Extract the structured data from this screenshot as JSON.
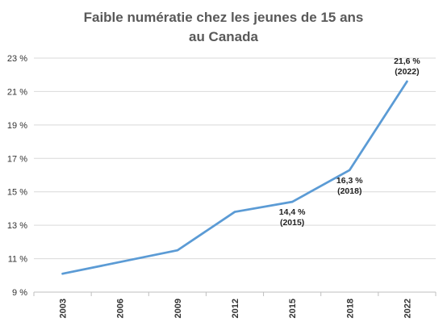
{
  "chart_data": {
    "type": "line",
    "title_lines": [
      "Faible numératie chez les jeunes de 15 ans",
      "au Canada"
    ],
    "xlabel": "",
    "ylabel": "",
    "x": [
      "2003",
      "2006",
      "2009",
      "2012",
      "2015",
      "2018",
      "2022"
    ],
    "series": [
      {
        "values": [
          10.1,
          10.8,
          11.5,
          13.8,
          14.4,
          16.3,
          21.6
        ],
        "color": "#5b9bd5"
      }
    ],
    "ylim": [
      9,
      23
    ],
    "y_ticks": [
      9,
      11,
      13,
      15,
      17,
      19,
      21,
      23
    ],
    "y_tick_labels": [
      "9 %",
      "11 %",
      "13 %",
      "15 %",
      "17 %",
      "19 %",
      "21 %",
      "23 %"
    ],
    "grid": true,
    "legend": "none",
    "annotations": [
      {
        "index": 4,
        "line1": "14,4 %",
        "line2": "(2015)"
      },
      {
        "index": 5,
        "line1": "16,3 %",
        "line2": "(2018)"
      },
      {
        "index": 6,
        "line1": "21,6 %",
        "line2": "(2022)"
      }
    ]
  }
}
